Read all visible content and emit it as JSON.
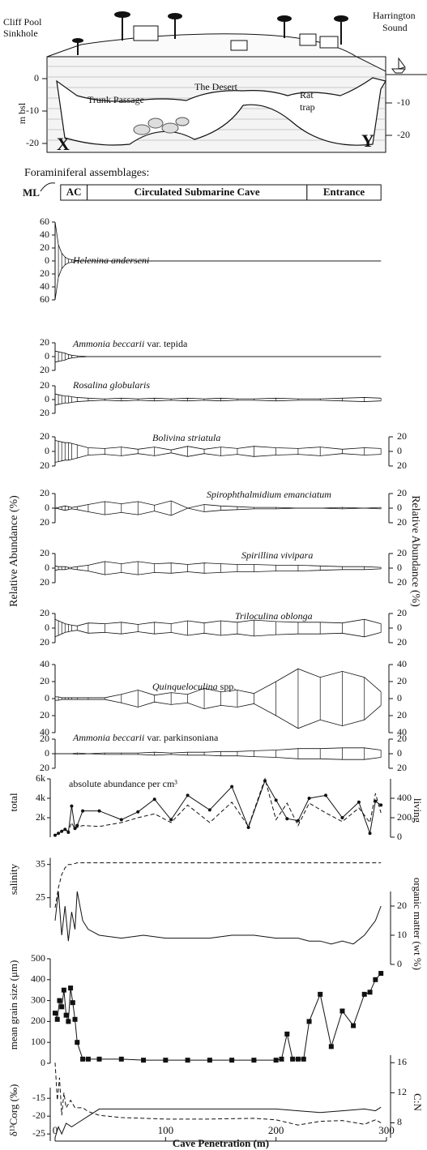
{
  "cross_section": {
    "left_title": [
      "Cliff Pool",
      "Sinkhole"
    ],
    "right_title": [
      "Harrington",
      "Sound"
    ],
    "depth_label": "m bsl",
    "trunk": "Trunk Passage",
    "desert": "The Desert",
    "rat": [
      "Rat",
      "trap"
    ],
    "start": "X",
    "end": "Y",
    "left_ticks": [
      0,
      -10,
      -20
    ],
    "right_ticks": [
      -10,
      -20
    ]
  },
  "assemblages": {
    "title": "Foraminiferal assemblages:",
    "ml": "ML",
    "zones": [
      {
        "label": "AC",
        "from": 5,
        "to": 29
      },
      {
        "label": "Circulated Submarine Cave",
        "from": 29,
        "to": 228
      },
      {
        "label": "Entrance",
        "from": 228,
        "to": 295
      }
    ]
  },
  "chart_data": [
    {
      "type": "kite",
      "ylabel": "Relative Abundance (%)",
      "xlim": [
        0,
        300
      ],
      "x": [
        0,
        3,
        6,
        9,
        12,
        15,
        20,
        30,
        45,
        60,
        75,
        90,
        105,
        120,
        135,
        150,
        165,
        180,
        200,
        220,
        240,
        260,
        280,
        295
      ],
      "series": [
        {
          "name": "Helenina anderseni",
          "ylim": [
            -60,
            60
          ],
          "yticks": [
            {
              "value": -60,
              "label": "60"
            },
            {
              "value": -40,
              "label": "40"
            },
            {
              "value": -20,
              "label": "20"
            },
            0,
            20,
            40,
            60
          ],
          "right_axis": false,
          "values": [
            60,
            25,
            12,
            6,
            3,
            2,
            0,
            0,
            0,
            0,
            0,
            0,
            0,
            0,
            0,
            0,
            0,
            0,
            0,
            0,
            0,
            0,
            0,
            0
          ]
        },
        {
          "name": "Ammonia beccarii",
          "suffix": " var. tepida",
          "ylim": [
            -20,
            20
          ],
          "yticks": [
            {
              "value": -20,
              "label": "20"
            },
            0,
            20
          ],
          "right_axis": false,
          "values": [
            8,
            7,
            6,
            5,
            3,
            2,
            1,
            0,
            0,
            0,
            0,
            0,
            0,
            0,
            0,
            0,
            0,
            0,
            0,
            0,
            0,
            0,
            0,
            0
          ]
        },
        {
          "name": "Rosalina globularis",
          "ylim": [
            -20,
            20
          ],
          "yticks": [
            {
              "value": -20,
              "label": "20"
            },
            0,
            20
          ],
          "right_axis": false,
          "values": [
            8,
            7,
            6,
            5,
            5,
            4,
            3,
            2,
            1,
            2,
            1,
            2,
            1,
            2,
            1,
            2,
            1,
            1,
            2,
            1,
            1,
            2,
            3,
            2
          ]
        },
        {
          "name": "Bolivina striatula",
          "ylim": [
            -20,
            20
          ],
          "yticks": [
            {
              "value": -20,
              "label": "20"
            },
            0,
            20
          ],
          "right_axis": true,
          "values": [
            15,
            14,
            13,
            12,
            12,
            11,
            9,
            5,
            4,
            6,
            3,
            6,
            2,
            7,
            3,
            6,
            4,
            7,
            5,
            4,
            6,
            3,
            5,
            4
          ]
        },
        {
          "name": "Spirophthalmidium emanciatum",
          "ylim": [
            -20,
            20
          ],
          "yticks": [
            {
              "value": -20,
              "label": "20"
            },
            0,
            20
          ],
          "right_axis": true,
          "values": [
            0,
            1,
            2,
            3,
            2,
            1,
            2,
            5,
            9,
            6,
            9,
            4,
            10,
            0,
            5,
            3,
            2,
            1,
            1,
            0,
            0,
            1,
            0,
            1
          ]
        },
        {
          "name": "Spirillina vivipara",
          "ylim": [
            -20,
            20
          ],
          "yticks": [
            {
              "value": -20,
              "label": "20"
            },
            0,
            20
          ],
          "right_axis": true,
          "values": [
            3,
            2,
            2,
            2,
            1,
            1,
            2,
            4,
            9,
            6,
            9,
            6,
            7,
            5,
            7,
            6,
            5,
            5,
            4,
            4,
            3,
            2,
            2,
            1
          ]
        },
        {
          "name": "Triloculina oblonga",
          "ylim": [
            -20,
            20
          ],
          "yticks": [
            {
              "value": -20,
              "label": "20"
            },
            0,
            20
          ],
          "right_axis": true,
          "values": [
            12,
            10,
            8,
            6,
            5,
            4,
            3,
            7,
            6,
            8,
            5,
            8,
            6,
            10,
            7,
            10,
            8,
            11,
            9,
            8,
            8,
            7,
            12,
            6
          ]
        },
        {
          "name": "Quinqueloculina",
          "suffix": " spp.",
          "ylim": [
            -40,
            40
          ],
          "yticks": [
            {
              "value": -40,
              "label": "40"
            },
            {
              "value": -20,
              "label": "20"
            },
            0,
            20,
            40
          ],
          "right_axis": true,
          "values": [
            2,
            2,
            1,
            1,
            1,
            1,
            1,
            1,
            1,
            5,
            10,
            4,
            7,
            5,
            12,
            8,
            10,
            6,
            20,
            35,
            25,
            32,
            25,
            8
          ]
        },
        {
          "name": "Ammonia beccarii",
          "suffix": " var. parkinsoniana",
          "ylim": [
            -20,
            20
          ],
          "yticks": [
            {
              "value": -20,
              "label": "20"
            },
            0,
            20
          ],
          "right_axis": true,
          "values": [
            0,
            0,
            0,
            0,
            0,
            0,
            1,
            0,
            1,
            1,
            1,
            2,
            1,
            2,
            2,
            3,
            3,
            4,
            5,
            7,
            7,
            8,
            8,
            5
          ]
        }
      ]
    },
    {
      "type": "line",
      "title": "absolute abundance per cm³",
      "ylabel": "total",
      "y2label": "living",
      "xlim": [
        0,
        300
      ],
      "ylim": [
        0,
        6000
      ],
      "yticks": [
        {
          "value": 2000,
          "label": "2k"
        },
        {
          "value": 4000,
          "label": "4k"
        },
        {
          "value": 6000,
          "label": "6k"
        }
      ],
      "y2lim": [
        0,
        600
      ],
      "y2ticks": [
        0,
        200,
        400
      ],
      "series": [
        {
          "color": "#111",
          "dash": false,
          "marker": "circle",
          "x": [
            0,
            3,
            6,
            9,
            12,
            15,
            18,
            20,
            25,
            40,
            60,
            75,
            90,
            105,
            120,
            140,
            160,
            175,
            190,
            200,
            210,
            220,
            230,
            245,
            260,
            275,
            285,
            290,
            295
          ],
          "values": [
            200,
            400,
            600,
            800,
            500,
            3200,
            900,
            1200,
            2700,
            2700,
            1800,
            2600,
            3900,
            1800,
            4300,
            2800,
            5200,
            1000,
            5800,
            3800,
            1900,
            1700,
            4000,
            4300,
            2000,
            3600,
            400,
            3700,
            3300
          ]
        },
        {
          "color": "#111",
          "dash": true,
          "axis": "y2",
          "x": [
            0,
            3,
            6,
            9,
            12,
            15,
            18,
            20,
            25,
            40,
            60,
            75,
            90,
            105,
            120,
            140,
            160,
            175,
            190,
            200,
            210,
            220,
            230,
            245,
            260,
            275,
            285,
            290,
            295
          ],
          "values": [
            20,
            40,
            60,
            80,
            60,
            150,
            80,
            100,
            120,
            110,
            150,
            200,
            240,
            150,
            330,
            150,
            360,
            110,
            600,
            180,
            350,
            120,
            350,
            250,
            160,
            300,
            150,
            450,
            250
          ]
        }
      ]
    },
    {
      "type": "line",
      "ylabel": "salinity",
      "y2label": "organic matter (wt %)",
      "xlim": [
        0,
        300
      ],
      "ylim": [
        22,
        37
      ],
      "yticks": [
        25,
        35
      ],
      "y2lim": [
        0,
        25
      ],
      "y2ticks": [
        0,
        10,
        20
      ],
      "series": [
        {
          "color": "#111",
          "dash": true,
          "x": [
            0,
            3,
            6,
            9,
            12,
            15,
            20,
            30,
            50,
            100,
            150,
            200,
            250,
            295
          ],
          "values": [
            22,
            28,
            32,
            34,
            35,
            35,
            35.5,
            35.5,
            35.5,
            35.5,
            35.5,
            35.5,
            35.5,
            35.5
          ]
        },
        {
          "color": "#111",
          "dash": false,
          "axis": "y2",
          "x": [
            0,
            3,
            6,
            9,
            12,
            15,
            18,
            20,
            25,
            30,
            40,
            60,
            80,
            100,
            120,
            140,
            160,
            180,
            200,
            220,
            230,
            240,
            250,
            260,
            270,
            280,
            290,
            295
          ],
          "values": [
            15,
            25,
            10,
            20,
            8,
            18,
            12,
            25,
            15,
            12,
            10,
            9,
            10,
            9,
            9,
            9,
            10,
            10,
            9,
            9,
            8,
            8,
            7,
            8,
            7,
            10,
            15,
            20
          ]
        }
      ]
    },
    {
      "type": "line",
      "ylabel": "mean grain size (μm)",
      "xlim": [
        0,
        300
      ],
      "ylim": [
        0,
        500
      ],
      "yticks": [
        0,
        100,
        200,
        300,
        400,
        500
      ],
      "series": [
        {
          "color": "#111",
          "dash": false,
          "marker": "square",
          "x": [
            0,
            2,
            4,
            6,
            8,
            10,
            12,
            14,
            16,
            18,
            20,
            25,
            30,
            40,
            60,
            80,
            100,
            120,
            140,
            160,
            180,
            200,
            205,
            210,
            215,
            220,
            225,
            230,
            240,
            250,
            260,
            270,
            280,
            285,
            290,
            295
          ],
          "values": [
            240,
            210,
            300,
            270,
            350,
            230,
            200,
            360,
            290,
            210,
            100,
            20,
            20,
            20,
            20,
            15,
            15,
            15,
            15,
            15,
            15,
            15,
            20,
            140,
            20,
            20,
            20,
            200,
            330,
            80,
            250,
            180,
            330,
            340,
            400,
            430
          ]
        }
      ]
    },
    {
      "type": "line",
      "ylabel": "δ¹³Corg (‰)",
      "y2label": "C:N",
      "xlabel": "Cave Penetration (m)",
      "xlim": [
        0,
        300
      ],
      "xticks": [
        0,
        100,
        200,
        300
      ],
      "ylim": [
        -27,
        -12
      ],
      "yticks": [
        -25,
        -20,
        -15
      ],
      "y2lim": [
        6,
        17
      ],
      "y2ticks": [
        8,
        12,
        16
      ],
      "series": [
        {
          "color": "#111",
          "dash": false,
          "x": [
            0,
            3,
            6,
            10,
            15,
            20,
            30,
            40,
            60,
            100,
            140,
            180,
            200,
            220,
            240,
            260,
            280,
            290,
            295
          ],
          "values": [
            -26,
            -23,
            -25,
            -22,
            -23,
            -22,
            -20,
            -18,
            -18,
            -18,
            -18,
            -18,
            -18,
            -18.5,
            -19,
            -18.5,
            -18,
            -18.5,
            -17.5
          ]
        },
        {
          "color": "#111",
          "dash": true,
          "axis": "y2",
          "x": [
            0,
            2,
            4,
            6,
            8,
            10,
            14,
            18,
            25,
            30,
            40,
            60,
            80,
            100,
            140,
            180,
            200,
            220,
            240,
            260,
            280,
            290,
            295
          ],
          "values": [
            16,
            11,
            14,
            9,
            12,
            10,
            11,
            10,
            10,
            9.5,
            9,
            8.7,
            8.6,
            8.5,
            8.5,
            8.6,
            8.4,
            7.7,
            8.2,
            8.3,
            7.8,
            8.4,
            8
          ]
        }
      ]
    }
  ]
}
